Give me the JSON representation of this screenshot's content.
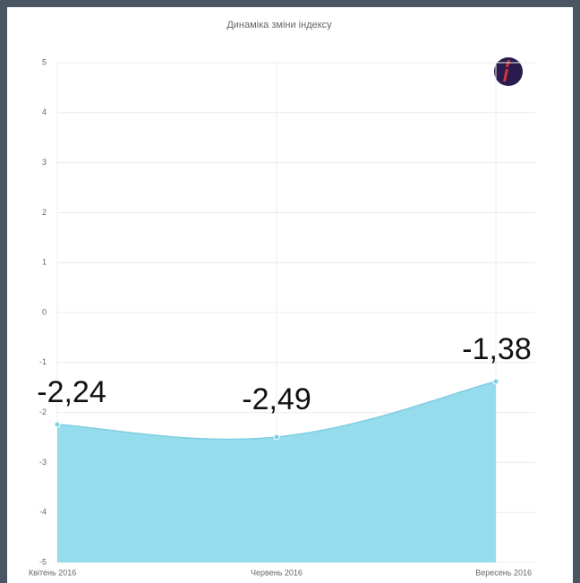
{
  "chart_data": {
    "type": "area",
    "title": "Динаміка зміни індексу",
    "categories": [
      "Квітень 2016",
      "Червень 2016",
      "Вересень 2016"
    ],
    "values": [
      -2.24,
      -2.49,
      -1.38
    ],
    "value_labels": [
      "-2,24",
      "-2,49",
      "-1,38"
    ],
    "color": "#95dced",
    "ylim": [
      -5,
      5
    ],
    "yticks": [
      -5,
      -4,
      -3,
      -2,
      -1,
      0,
      1,
      2,
      3,
      4,
      5
    ],
    "grid": true
  }
}
